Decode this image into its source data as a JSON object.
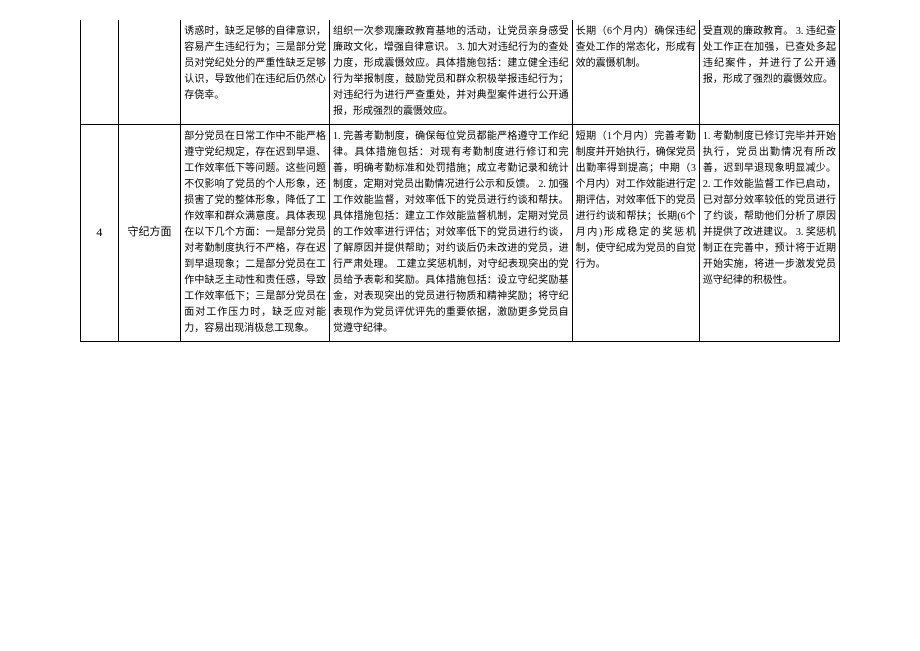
{
  "rows": [
    {
      "num": "",
      "aspect": "",
      "problem": "诱惑时，缺乏足够的自律意识，容易产生违纪行为；三是部分党员对党纪处分的严重性缺乏足够认识，导致他们在违纪后仍然心存侥幸。",
      "measure": "组织一次参观廉政教育基地的活动，让党员亲身感受廉政文化，增强自律意识。\n3. 加大对违纪行为的查处力度，形成震慑效应。具体措施包括：建立健全违纪行为举报制度，鼓励党员和群众积极举报违纪行为；对违纪行为进行严查重处，并对典型案件进行公开通报，形成强烈的震慑效应。",
      "deadline": "长期（6个月内）确保违纪查处工作的常态化，形成有效的震慑机制。",
      "progress": "受直观的廉政教育。\n3. 违纪查处工作正在加强，已查处多起违纪案件，并进行了公开通报，形成了强烈的震慑效应。"
    },
    {
      "num": "4",
      "aspect": "守纪方面",
      "problem": "部分党员在日常工作中不能严格遵守党纪规定，存在迟到早退、工作效率低下等问题。这些问题不仅影响了党员的个人形象，还损害了党的整体形象，降低了工作效率和群众满意度。具体表现在以下几个方面：一是部分党员对考勤制度执行不严格，存在迟到早退现象；二是部分党员在工作中缺乏主动性和责任感，导致工作效率低下；三是部分党员在面对工作压力时，缺乏应对能力，容易出现消极怠工现象。",
      "measure": "1. 完善考勤制度，确保每位党员都能严格遵守工作纪律。具体措施包括：对现有考勤制度进行修订和完善，明确考勤标准和处罚措施；成立考勤记录和统计制度，定期对党员出勤情况进行公示和反馈。\n2. 加强工作效能监督，对效率低下的党员进行约谈和帮扶。具体措施包括：建立工作效能监督机制，定期对党员的工作效率进行评估；对效率低下的党员进行约谈，了解原因并提供帮助；对约谈后仍未改进的党员，进行严肃处理。\n工建立奖惩机制，对守纪表现突出的党员给予表彰和奖励。具体措施包括：设立守纪奖励基金，对表现突出的党员进行物质和精神奖励；将守纪表现作为党员评优评先的重要依据，激励更多党员自觉遵守纪律。",
      "deadline": "短期（1个月内）完善考勤制度并开始执行，确保党员出勤率得到提高；中期（3个月内）对工作效能进行定期评估，对效率低下的党员进行约谈和帮扶；长期(6个月内)形成稳定的奖惩机制，使守纪成为党员的自觉行为。",
      "progress": "1. 考勤制度已修订完毕并开始执行，党员出勤情况有所改善，迟到早退现象明显减少。\n2. 工作效能监督工作已启动，已对部分效率较低的党员进行了约谈，帮助他们分析了原因并提供了改进建议。\n3. 奖惩机制正在完善中，预计将于近期开始实施，将进一步激发党员巡守纪律的积极性。"
    }
  ]
}
